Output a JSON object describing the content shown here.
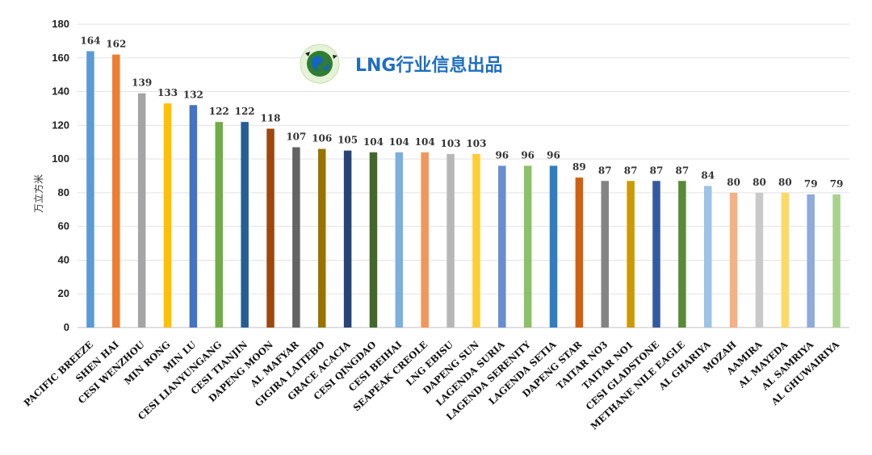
{
  "brand": {
    "text": "LNG行业信息出品",
    "logo_icon": "globe-icon",
    "color": "#1f6fbf"
  },
  "chart_data": {
    "type": "bar",
    "title": "",
    "xlabel": "",
    "ylabel": "万立方米",
    "ylim": [
      0,
      180
    ],
    "yticks": [
      0,
      20,
      40,
      60,
      80,
      100,
      120,
      140,
      160,
      180
    ],
    "grid": true,
    "categories": [
      "PACIFIC BREEZE",
      "SHEN HAI",
      "CESI WENZHOU",
      "MIN RONG",
      "MIN LU",
      "CESI LIANYUNGANG",
      "CESI TIANJIN",
      "DAPENG MOON",
      "AL MAFYAR",
      "GIGIRA LAITEBO",
      "GRACE ACACIA",
      "CESI QINGDAO",
      "CESI BEIHAI",
      "SEAPEAK CREOLE",
      "LNG EBISU",
      "DAPENG SUN",
      "LAGENDA SURIA",
      "LAGENDA SERENITY",
      "LAGENDA SETIA",
      "DAPENG STAR",
      "TAITAR NO3",
      "TAITAR NO1",
      "CESI GLADSTONE",
      "METHANE NILE EAGLE",
      "AL GHARIYA",
      "MOZAH",
      "AAMIRA",
      "AL MAYEDA",
      "AL SAMRIYA",
      "AL GHUWAIRIYA"
    ],
    "values": [
      164,
      162,
      139,
      133,
      132,
      122,
      122,
      118,
      107,
      106,
      105,
      104,
      104,
      104,
      103,
      103,
      96,
      96,
      96,
      89,
      87,
      87,
      87,
      87,
      84,
      80,
      80,
      80,
      79,
      79
    ],
    "colors": [
      "#5b9bd5",
      "#ed7d31",
      "#a5a5a5",
      "#ffc000",
      "#4472c4",
      "#70ad47",
      "#255e91",
      "#9e480e",
      "#636363",
      "#997300",
      "#264478",
      "#43682b",
      "#7cafdd",
      "#f1975a",
      "#b7b7b7",
      "#ffcd33",
      "#698ed0",
      "#8cc168",
      "#327dc2",
      "#d26012",
      "#848484",
      "#cc9a00",
      "#335aa1",
      "#5a8a39",
      "#9dc3e6",
      "#f4b183",
      "#c9c9c9",
      "#ffd966",
      "#8faadc",
      "#a9d18e"
    ]
  }
}
